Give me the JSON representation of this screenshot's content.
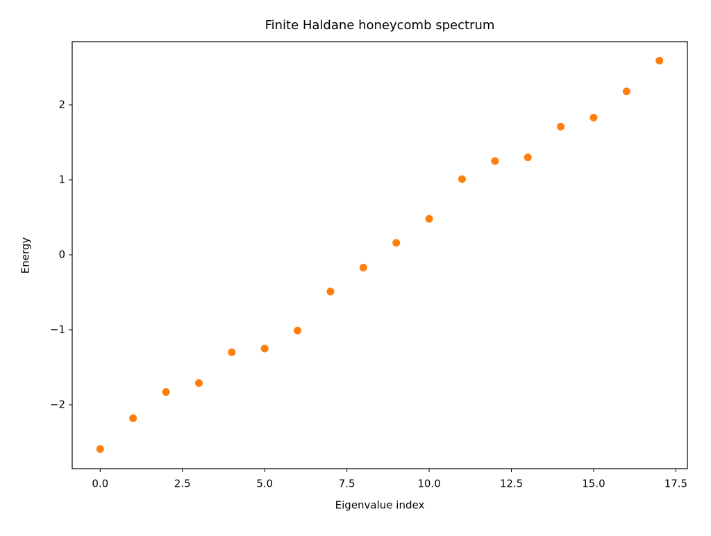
{
  "chart_data": {
    "type": "scatter",
    "title": "Finite Haldane honeycomb spectrum",
    "xlabel": "Eigenvalue index",
    "ylabel": "Energy",
    "x": [
      0,
      1,
      2,
      3,
      4,
      5,
      6,
      7,
      8,
      9,
      10,
      11,
      12,
      13,
      14,
      15,
      16,
      17
    ],
    "values": [
      -2.59,
      -2.18,
      -1.83,
      -1.71,
      -1.3,
      -1.25,
      -1.01,
      -0.49,
      -0.17,
      0.16,
      0.48,
      1.01,
      1.25,
      1.3,
      1.71,
      1.83,
      2.18,
      2.59
    ],
    "color": "#ff7f0e",
    "xlim": [
      -0.85,
      17.85
    ],
    "xticks": [
      {
        "value": 0,
        "label": "0.0"
      },
      2.5,
      {
        "value": 5,
        "label": "5.0"
      },
      7.5,
      {
        "value": 10,
        "label": "10.0"
      },
      12.5,
      {
        "value": 15,
        "label": "15.0"
      },
      17.5
    ],
    "ylim": [
      -2.852,
      2.843
    ],
    "yticks": [
      {
        "value": -2,
        "label": "−2"
      },
      {
        "value": -1,
        "label": "−1"
      },
      0,
      1,
      2
    ],
    "grid": false
  }
}
